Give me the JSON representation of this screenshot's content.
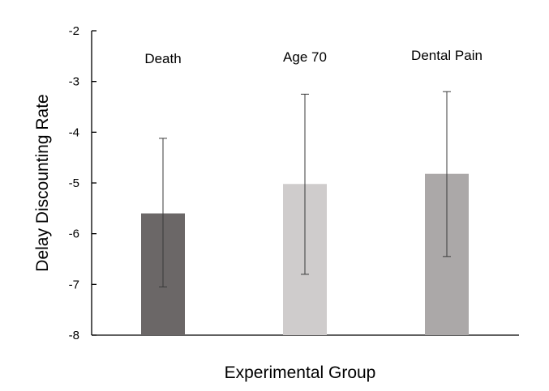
{
  "chart_data": {
    "type": "bar",
    "categories": [
      "Death",
      "Age 70",
      "Dental Pain"
    ],
    "values": [
      -5.6,
      -5.02,
      -4.82
    ],
    "error_low": [
      -7.05,
      -6.8,
      -6.45
    ],
    "error_high": [
      -4.12,
      -3.25,
      -3.2
    ],
    "colors": [
      "#6b6767",
      "#cfcccc",
      "#aba8a8"
    ],
    "xlabel": "Experimental Group",
    "ylabel": "Delay Discounting Rate",
    "ylim": [
      -8,
      -2
    ],
    "yticks": [
      -2,
      -3,
      -4,
      -5,
      -6,
      -7,
      -8
    ],
    "grid": false,
    "legend": "none",
    "category_labels_position": "top"
  }
}
